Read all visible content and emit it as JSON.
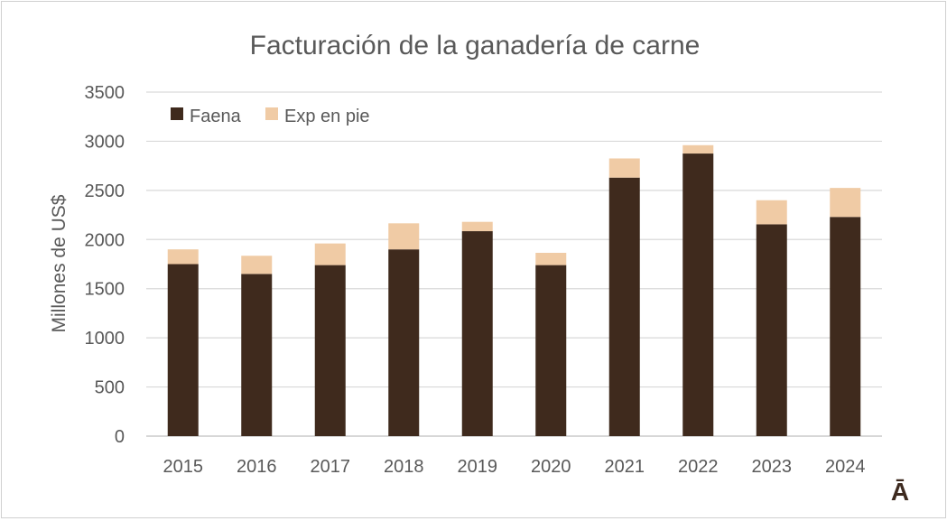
{
  "chart_data": {
    "type": "bar",
    "stacked": true,
    "title": "Facturación de la ganadería de carne",
    "xlabel": "",
    "ylabel": "Millones de US$",
    "ylim": [
      0,
      3500
    ],
    "yticks": [
      0,
      500,
      1000,
      1500,
      2000,
      2500,
      3000,
      3500
    ],
    "categories": [
      "2015",
      "2016",
      "2017",
      "2018",
      "2019",
      "2020",
      "2021",
      "2022",
      "2023",
      "2024"
    ],
    "series": [
      {
        "name": "Faena",
        "color": "#3f2a1d",
        "values": [
          1750,
          1650,
          1740,
          1900,
          2085,
          1740,
          2630,
          2875,
          2155,
          2230
        ]
      },
      {
        "name": "Exp en pie",
        "color": "#f0cba5",
        "values": [
          150,
          185,
          220,
          265,
          95,
          125,
          195,
          85,
          245,
          295
        ]
      }
    ],
    "legend": "top-left",
    "grid": true
  },
  "logo": {
    "text": "Ā"
  }
}
